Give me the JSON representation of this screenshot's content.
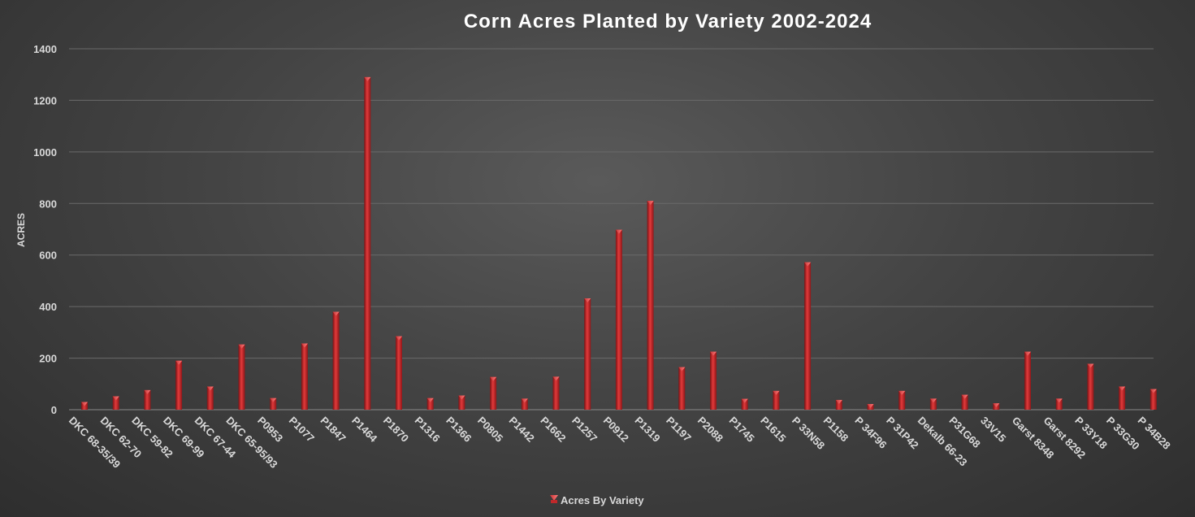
{
  "chart_data": {
    "type": "bar",
    "title": "Corn Acres Planted by Variety 2002-2024",
    "ylabel": "ACRES",
    "xlabel": "",
    "ylim": [
      0,
      1400
    ],
    "yticks": [
      0,
      200,
      400,
      600,
      800,
      1000,
      1200,
      1400
    ],
    "grid": true,
    "legend_position": "bottom",
    "bar_color": "#c0282a",
    "categories": [
      "DKC 68-35/39",
      "DKC 62-70",
      "DKC 59-82",
      "DKC 69-99",
      "DKC 67-44",
      "DKC 65-95/93",
      "P0953",
      "P1077",
      "P1847",
      "P1464",
      "P1870",
      "P1316",
      "P1366",
      "P0805",
      "P1442",
      "P1662",
      "P1257",
      "P0912",
      "P1319",
      "P1197",
      "P2088",
      "P1745",
      "P1615",
      "P 33N58",
      "P1158",
      "P 34F96",
      "P 31P42",
      "Dekalb 66-23",
      "P31G68",
      "33V15",
      "Garst 8348",
      "Garst 8292",
      "P 33Y18",
      "P 33G30",
      "P 34B28"
    ],
    "series": [
      {
        "name": "Acres By Variety",
        "values": [
          30,
          52,
          76,
          190,
          90,
          253,
          45,
          257,
          380,
          1290,
          285,
          45,
          55,
          127,
          43,
          128,
          432,
          698,
          810,
          165,
          225,
          42,
          73,
          572,
          38,
          22,
          73,
          43,
          58,
          25,
          225,
          43,
          178,
          90,
          80
        ]
      }
    ]
  }
}
